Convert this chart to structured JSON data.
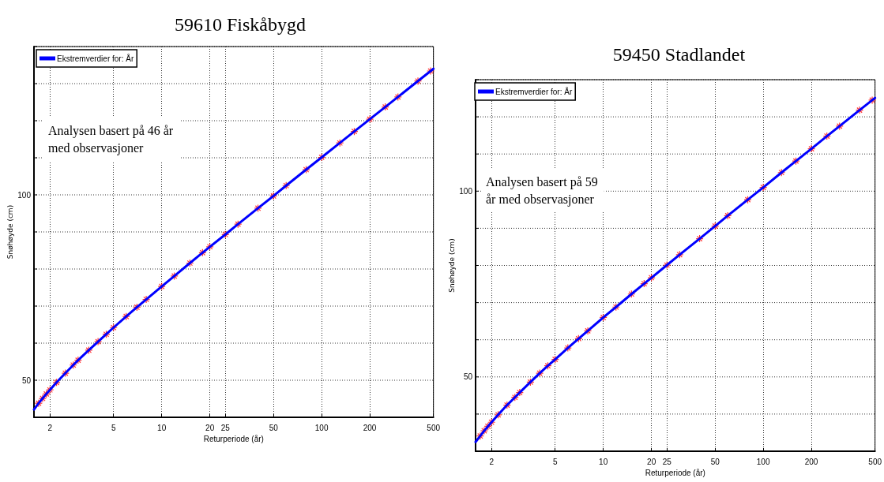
{
  "chart_data": [
    {
      "type": "line",
      "title": "59610 Fiskåbygd",
      "xlabel": "Returperiode (år)",
      "ylabel": "Snøhøyde (cm)",
      "annotations": [
        "Analysen basert på 46 år\nmed observasjoner"
      ],
      "xlim": [
        1.59,
        500
      ],
      "xticks": [
        2,
        5,
        10,
        20,
        25,
        50,
        100,
        200,
        500
      ],
      "ylim": [
        40,
        140
      ],
      "yticks": [
        {
          "value": 40,
          "label": null
        },
        {
          "value": 50,
          "label": "50"
        },
        {
          "value": 60,
          "label": null
        },
        {
          "value": 70,
          "label": null
        },
        {
          "value": 80,
          "label": null
        },
        {
          "value": 90,
          "label": null
        },
        {
          "value": 100,
          "label": "100"
        },
        {
          "value": 110,
          "label": null
        },
        {
          "value": 120,
          "label": null
        },
        {
          "value": 130,
          "label": null
        },
        {
          "value": 140,
          "label": null
        }
      ],
      "grid": true,
      "legend": "top left",
      "log": "x",
      "x": [
        1.59,
        1.7,
        1.8,
        1.9,
        2,
        2.2,
        2.5,
        2.8,
        3,
        3.5,
        4,
        4.5,
        5,
        6,
        7,
        8,
        10,
        12,
        15,
        18,
        20,
        25,
        30,
        40,
        50,
        60,
        80,
        100,
        130,
        160,
        200,
        250,
        300,
        400,
        500
      ],
      "series": [
        {
          "type": "scatter",
          "color": "#ff0000",
          "marker": "cross",
          "x": [
            1.7,
            1.8,
            1.9,
            2,
            2.2,
            2.5,
            2.8,
            3,
            3.5,
            4,
            4.5,
            5,
            6,
            7,
            8,
            10,
            12,
            15,
            18,
            20,
            25,
            30,
            40,
            50,
            60,
            80,
            100,
            130,
            160,
            200,
            250,
            300,
            400,
            480
          ],
          "values": [
            43.8,
            45.1,
            46.3,
            47.4,
            49.4,
            51.9,
            54.1,
            55.4,
            58.1,
            60.4,
            62.4,
            64.2,
            67.2,
            69.7,
            71.8,
            75.3,
            78.1,
            81.6,
            84.4,
            86.0,
            89.3,
            92.1,
            96.4,
            99.7,
            102.5,
            106.8,
            110.1,
            114.0,
            117.1,
            120.4,
            123.7,
            126.4,
            130.7,
            133.4
          ]
        },
        {
          "name": "Ekstremverdier for: År",
          "color": "#0000ff",
          "marker": "none",
          "line_style": "solid",
          "values": [
            42.1,
            43.8,
            45.1,
            46.3,
            47.4,
            49.4,
            51.9,
            54.1,
            55.4,
            58.1,
            60.4,
            62.4,
            64.2,
            67.2,
            69.7,
            71.8,
            75.3,
            78.1,
            81.6,
            84.4,
            86.0,
            89.3,
            92.1,
            96.4,
            99.7,
            102.5,
            106.8,
            110.1,
            114.0,
            117.1,
            120.4,
            123.7,
            126.4,
            130.7,
            134.0
          ]
        }
      ]
    },
    {
      "type": "line",
      "title": "59450 Stadlandet",
      "xlabel": "Returperiode (år)",
      "ylabel": "Snøhøyde (cm)",
      "annotations": [
        "Analysen basert på 59\når med observasjoner"
      ],
      "xlim": [
        1.59,
        500
      ],
      "xticks": [
        2,
        5,
        10,
        20,
        25,
        50,
        100,
        200,
        500
      ],
      "ylim": [
        30,
        130
      ],
      "yticks": [
        {
          "value": 30,
          "label": null
        },
        {
          "value": 40,
          "label": null
        },
        {
          "value": 50,
          "label": "50"
        },
        {
          "value": 60,
          "label": null
        },
        {
          "value": 70,
          "label": null
        },
        {
          "value": 80,
          "label": null
        },
        {
          "value": 90,
          "label": null
        },
        {
          "value": 100,
          "label": "100"
        },
        {
          "value": 110,
          "label": null
        },
        {
          "value": 120,
          "label": null
        },
        {
          "value": 130,
          "label": null
        }
      ],
      "grid": true,
      "legend": "top left",
      "log": "x",
      "x": [
        1.59,
        1.7,
        1.8,
        1.9,
        2,
        2.2,
        2.5,
        2.8,
        3,
        3.5,
        4,
        4.5,
        5,
        6,
        7,
        8,
        10,
        12,
        15,
        18,
        20,
        25,
        30,
        40,
        50,
        60,
        80,
        100,
        130,
        160,
        200,
        250,
        300,
        400,
        500
      ],
      "series": [
        {
          "type": "scatter",
          "color": "#ff0000",
          "marker": "cross",
          "x": [
            1.7,
            1.8,
            1.9,
            2,
            2.2,
            2.5,
            2.8,
            3,
            3.5,
            4,
            4.5,
            5,
            6,
            7,
            8,
            10,
            12,
            15,
            18,
            20,
            25,
            30,
            40,
            50,
            60,
            80,
            100,
            130,
            160,
            200,
            250,
            300,
            400,
            480
          ],
          "values": [
            34.1,
            35.5,
            36.7,
            37.8,
            39.8,
            42.4,
            44.5,
            45.8,
            48.6,
            51.0,
            53.0,
            54.7,
            57.8,
            60.3,
            62.4,
            66.0,
            68.8,
            72.3,
            75.1,
            76.7,
            80.1,
            82.9,
            87.2,
            90.6,
            93.4,
            97.7,
            101.0,
            105.0,
            108.1,
            111.4,
            114.8,
            117.5,
            121.8,
            124.5
          ]
        },
        {
          "name": "Ekstremverdier for: År",
          "color": "#0000ff",
          "marker": "none",
          "line_style": "solid",
          "values": [
            32.5,
            34.1,
            35.5,
            36.7,
            37.8,
            39.8,
            42.4,
            44.5,
            45.8,
            48.6,
            51.0,
            53.0,
            54.7,
            57.8,
            60.3,
            62.4,
            66.0,
            68.8,
            72.3,
            75.1,
            76.7,
            80.1,
            82.9,
            87.2,
            90.6,
            93.4,
            97.7,
            101.0,
            105.0,
            108.1,
            111.4,
            114.8,
            117.5,
            121.8,
            125.1
          ]
        }
      ]
    }
  ]
}
